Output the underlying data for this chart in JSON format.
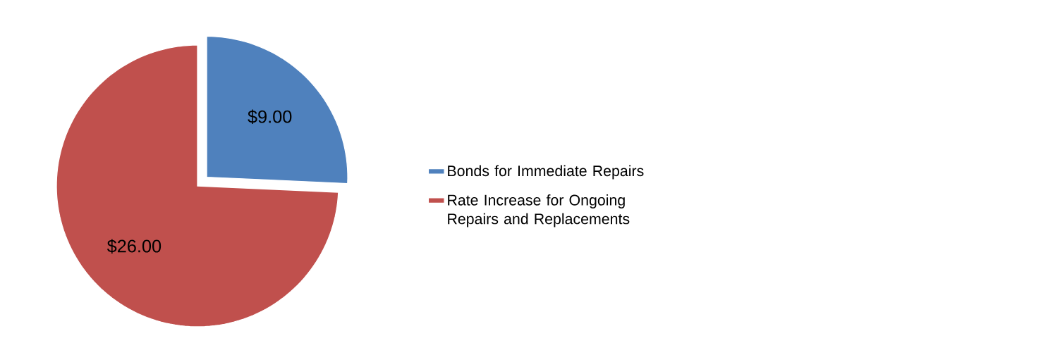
{
  "chart_data": {
    "type": "pie",
    "categories": [
      "Bonds for Immediate Repairs",
      "Rate Increase for Ongoing Repairs and Replacements"
    ],
    "values": [
      9,
      26
    ],
    "colors": [
      "#4f81bd",
      "#c0504d"
    ],
    "value_labels": [
      "$9.00",
      "$26.00"
    ],
    "legend": "right"
  }
}
